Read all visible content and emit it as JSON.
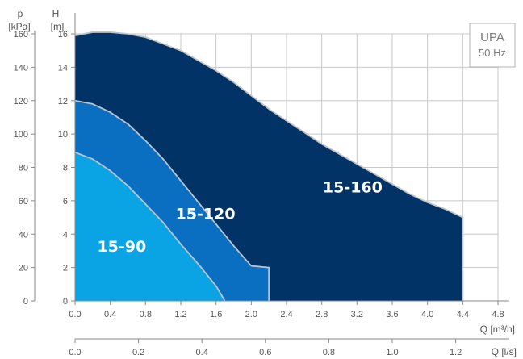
{
  "chart_data": {
    "type": "area",
    "title": "",
    "legend_box": {
      "line1": "UPA",
      "line2": "50 Hz",
      "placement": "top-right"
    },
    "axes": {
      "x_primary": {
        "label": "Q [m³/h]",
        "ticks": [
          "0.0",
          "0.4",
          "0.8",
          "1.2",
          "1.6",
          "2.0",
          "2.4",
          "2.8",
          "3.2",
          "3.6",
          "4.0",
          "4.4",
          "4.8"
        ],
        "range": [
          0,
          4.8
        ]
      },
      "x_secondary": {
        "label": "Q [l/s]",
        "ticks": [
          "0.0",
          "0.2",
          "0.4",
          "0.6",
          "0.8",
          "1.0",
          "1.2"
        ],
        "range": [
          0,
          1.2
        ]
      },
      "y_primary": {
        "label_line1": "H",
        "label_line2": "[m]",
        "ticks": [
          "0",
          "2",
          "4",
          "6",
          "8",
          "10",
          "12",
          "14",
          "16"
        ],
        "range": [
          0,
          16
        ]
      },
      "y_secondary": {
        "label_line1": "p",
        "label_line2": "[kPa]",
        "ticks": [
          "0",
          "20",
          "40",
          "60",
          "80",
          "100",
          "120",
          "140",
          "160"
        ],
        "range": [
          0,
          160
        ]
      }
    },
    "grid": true,
    "series": [
      {
        "name": "15-160",
        "color": "#023366",
        "x": [
          0.0,
          0.2,
          0.4,
          0.6,
          0.8,
          1.0,
          1.2,
          1.4,
          1.6,
          1.8,
          2.0,
          2.2,
          2.4,
          2.6,
          2.8,
          3.0,
          3.2,
          3.4,
          3.6,
          3.8,
          4.0,
          4.2,
          4.4
        ],
        "y": [
          15.9,
          16.1,
          16.1,
          16.0,
          15.8,
          15.4,
          15.0,
          14.4,
          13.8,
          13.1,
          12.3,
          11.5,
          10.8,
          10.1,
          9.4,
          8.8,
          8.2,
          7.6,
          7.0,
          6.4,
          5.9,
          5.5,
          5.0
        ],
        "label_pos": {
          "x": 3.15,
          "y": 6.5
        }
      },
      {
        "name": "15-120",
        "color": "#0a6fc0",
        "x": [
          0.0,
          0.2,
          0.4,
          0.6,
          0.8,
          1.0,
          1.2,
          1.4,
          1.6,
          1.8,
          2.0,
          2.2
        ],
        "y": [
          12.0,
          11.8,
          11.3,
          10.6,
          9.6,
          8.5,
          7.2,
          5.9,
          4.6,
          3.3,
          2.1,
          2.0
        ],
        "label_pos": {
          "x": 1.48,
          "y": 4.9
        }
      },
      {
        "name": "15-90",
        "color": "#0aa3e3",
        "x": [
          0.0,
          0.2,
          0.4,
          0.6,
          0.8,
          1.0,
          1.2,
          1.4,
          1.6,
          1.7
        ],
        "y": [
          8.9,
          8.5,
          7.8,
          6.9,
          5.8,
          4.7,
          3.4,
          2.2,
          0.9,
          0.0
        ],
        "label_pos": {
          "x": 0.53,
          "y": 2.95
        }
      }
    ]
  }
}
